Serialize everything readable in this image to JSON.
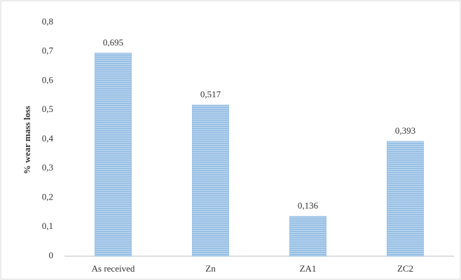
{
  "chart_data": {
    "type": "bar",
    "y_label": "% wear mass loss",
    "categories": [
      "As received",
      "Zn",
      "ZA1",
      "ZC2"
    ],
    "values": [
      0.695,
      0.517,
      0.136,
      0.393
    ],
    "value_labels": [
      "0,695",
      "0,517",
      "0,136",
      "0,393"
    ],
    "color": "#9dc3e6",
    "ylim": [
      0,
      0.8
    ],
    "yticks": [
      0,
      {
        "value": 0.1,
        "label": "0,1"
      },
      {
        "value": 0.2,
        "label": "0,2"
      },
      {
        "value": 0.3,
        "label": "0,3"
      },
      {
        "value": 0.4,
        "label": "0,4"
      },
      {
        "value": 0.5,
        "label": "0,5"
      },
      {
        "value": 0.6,
        "label": "0,6"
      },
      {
        "value": 0.7,
        "label": "0,7"
      },
      {
        "value": 0.8,
        "label": "0,8"
      }
    ],
    "grid": false
  }
}
